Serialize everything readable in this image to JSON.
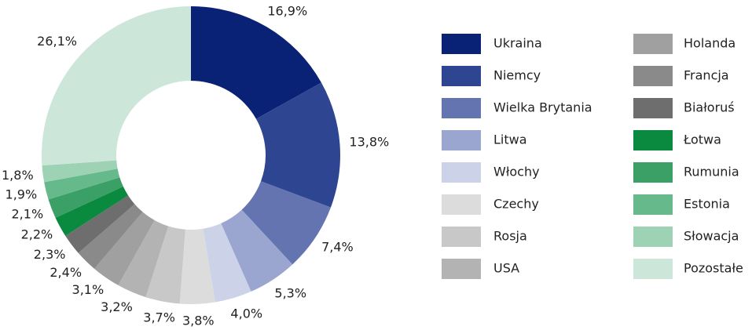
{
  "chart_data": {
    "type": "donut",
    "categories": [
      "Ukraina",
      "Niemcy",
      "Wielka Brytania",
      "Litwa",
      "Włochy",
      "Czechy",
      "Rosja",
      "USA",
      "Holanda",
      "Francja",
      "Białoruś",
      "Łotwa",
      "Rumunia",
      "Estonia",
      "Słowacja",
      "Pozostałe"
    ],
    "values": [
      16.9,
      13.8,
      7.4,
      5.3,
      4.0,
      3.8,
      3.7,
      3.2,
      3.1,
      2.4,
      2.3,
      2.2,
      2.1,
      1.9,
      1.8,
      26.1
    ],
    "value_labels": [
      "16,9%",
      "13,8%",
      "7,4%",
      "5,3%",
      "4,0%",
      "3,8%",
      "3,7%",
      "3,2%",
      "3,1%",
      "2,4%",
      "2,3%",
      "2,2%",
      "2,1%",
      "1,9%",
      "1,8%",
      "26,1%"
    ],
    "colors": [
      "#0a2275",
      "#2e4592",
      "#6474b0",
      "#9aa6cf",
      "#ccd2e8",
      "#dcdcdc",
      "#c8c8c8",
      "#b3b3b3",
      "#a0a0a0",
      "#8a8a8a",
      "#6e6e6e",
      "#0a8a3e",
      "#3aa065",
      "#66b98a",
      "#9dd2b4",
      "#cde6da"
    ],
    "legend": "right"
  }
}
